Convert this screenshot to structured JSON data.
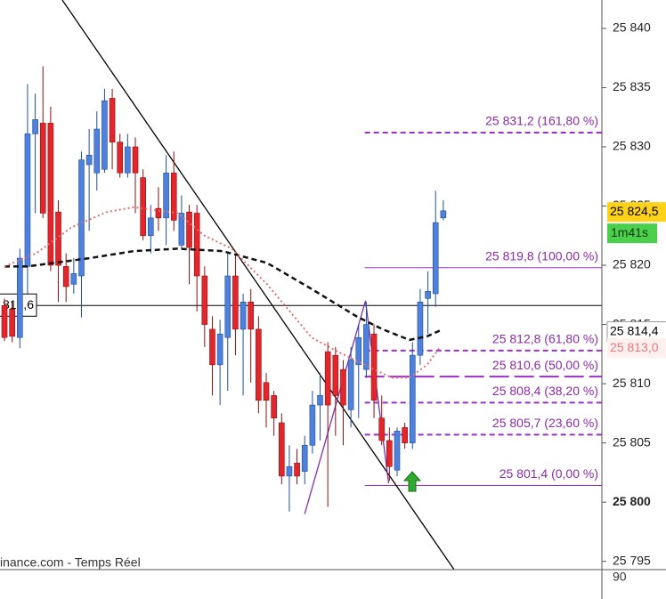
{
  "chart_data": {
    "type": "candlestick",
    "source": "inance.com - Temps Réel",
    "lower_axis_label": "90",
    "xlim": [
      -0.58,
      77.6
    ],
    "ylim": [
      25794.3,
      25842.4
    ],
    "yticks": [
      {
        "value": 25795,
        "label": "25 795"
      },
      {
        "value": 25800,
        "label": "25 800",
        "bold": true
      },
      {
        "value": 25805,
        "label": "25 805"
      },
      {
        "value": 25810,
        "label": "25 810"
      },
      {
        "value": 25815,
        "label": "25 815"
      },
      {
        "value": 25820,
        "label": "25 820"
      },
      {
        "value": 25825,
        "label": "25 825"
      },
      {
        "value": 25830,
        "label": "25 830"
      },
      {
        "value": 25835,
        "label": "25 835"
      },
      {
        "value": 25840,
        "label": "25 840"
      }
    ],
    "up_color": "#4f80db",
    "down_color": "#e3262b",
    "candles": {
      "open": [
        25816.6,
        25816.3,
        25813.9,
        25819.9,
        25831.1,
        25832.0,
        25832.0,
        25824.5,
        25819.9,
        25818.4,
        25819.1,
        25828.5,
        25827.8,
        25828.1,
        25834.1,
        25830.4,
        25827.8,
        25830.0,
        25827.4,
        25822.5,
        25824.8,
        25824.0,
        25827.8,
        25821.7,
        25824.5,
        25824.4,
        25819.1,
        25814.6,
        25811.6,
        25813.9,
        25819.1,
        25814.6,
        25816.9,
        25814.6,
        25810.1,
        25809.0,
        25806.7,
        25802.2,
        25803.3,
        25802.6,
        25804.8,
        25808.2,
        25812.7,
        25812.4,
        25811.2,
        25807.8,
        25811.6,
        25811.2,
        25814.2,
        25807.1,
        25805.2,
        25802.7,
        25806.3,
        25805.0,
        25812.4,
        25817.2,
        25817.6,
        25824.0
      ],
      "high": [
        25817.2,
        25816.9,
        25821.4,
        25835.3,
        25834.5,
        25836.8,
        25833.4,
        25825.5,
        25821.0,
        25820.6,
        25829.6,
        25831.5,
        25833.0,
        25834.9,
        25834.9,
        25831.1,
        25831.1,
        25830.8,
        25828.1,
        25825.1,
        25826.6,
        25829.3,
        25829.6,
        25825.9,
        25825.1,
        25825.1,
        25819.9,
        25815.7,
        25815.4,
        25821.0,
        25821.0,
        25817.6,
        25818.0,
        25815.7,
        25810.9,
        25809.4,
        25807.5,
        25804.8,
        25804.5,
        25805.6,
        25809.4,
        25810.9,
        25813.5,
        25813.1,
        25812.0,
        25813.1,
        25815.0,
        25816.9,
        25815.0,
        25809.0,
        25806.3,
        25806.3,
        25806.7,
        25813.5,
        25818.0,
        25819.5,
        25826.3,
        25825.5
      ],
      "low": [
        25813.6,
        25813.5,
        25813.0,
        25817.6,
        25824.4,
        25824.0,
        25819.5,
        25816.9,
        25816.9,
        25817.6,
        25815.6,
        25822.9,
        25826.3,
        25827.8,
        25828.1,
        25827.4,
        25827.4,
        25824.4,
        25822.1,
        25821.0,
        25822.9,
        25821.7,
        25822.9,
        25821.4,
        25818.4,
        25816.1,
        25813.1,
        25809.0,
        25808.2,
        25809.4,
        25812.4,
        25809.0,
        25810.1,
        25807.5,
        25806.3,
        25805.6,
        25801.5,
        25799.2,
        25801.5,
        25801.5,
        25804.1,
        25805.2,
        25799.6,
        25805.6,
        25804.8,
        25806.3,
        25807.1,
        25810.5,
        25807.1,
        25804.8,
        25801.8,
        25802.2,
        25804.5,
        25804.5,
        25811.6,
        25814.2,
        25816.5,
        25823.8
      ],
      "close": [
        25813.9,
        25814.0,
        25820.6,
        25831.1,
        25832.3,
        25824.4,
        25820.0,
        25820.0,
        25818.2,
        25819.3,
        25828.9,
        25829.3,
        25831.5,
        25833.9,
        25830.4,
        25827.8,
        25830.0,
        25827.8,
        25822.5,
        25824.0,
        25824.0,
        25827.8,
        25823.8,
        25824.4,
        25821.5,
        25819.1,
        25815.0,
        25811.6,
        25814.2,
        25819.1,
        25814.6,
        25816.9,
        25814.6,
        25808.6,
        25808.6,
        25807.1,
        25802.2,
        25803.0,
        25802.2,
        25804.8,
        25808.2,
        25809.0,
        25808.2,
        25809.0,
        25808.2,
        25812.0,
        25813.9,
        25815.0,
        25808.6,
        25805.2,
        25803.0,
        25806.0,
        25805.0,
        25812.4,
        25816.9,
        25817.8,
        25823.6,
        25824.6
      ]
    },
    "moving_averages": [
      {
        "color": "#111111",
        "dash": "6 4",
        "width": 2.5,
        "x": [
          0,
          2.9,
          6.4,
          11.0,
          16.8,
          22.5,
          28.3,
          34.1,
          39.9,
          45.7,
          49.1,
          52.6,
          54.9,
          56.6
        ],
        "values": [
          25819.9,
          25819.9,
          25820.2,
          25820.6,
          25821.2,
          25821.4,
          25821.2,
          25820.2,
          25818.0,
          25815.7,
          25814.6,
          25813.7,
          25814.0,
          25814.5
        ]
      },
      {
        "color": "#e07070",
        "dash": "2 3",
        "width": 2,
        "x": [
          0,
          4.1,
          8.7,
          13.3,
          16.8,
          22.5,
          26.0,
          29.5,
          34.1,
          39.9,
          43.3,
          46.8,
          50.3,
          52.6,
          54.9,
          56.6
        ],
        "values": [
          25819.9,
          25821.0,
          25823.2,
          25824.5,
          25824.9,
          25824.4,
          25822.5,
          25821.4,
          25818.4,
          25813.9,
          25812.7,
          25811.6,
          25810.5,
          25810.5,
          25811.6,
          25813.1
        ]
      }
    ],
    "trendlines": [
      {
        "color": "#000000",
        "x": [
          7.5,
          58.4
        ],
        "values": [
          25842.4,
          25794.3
        ]
      },
      {
        "color": "#7b2fb0",
        "x": [
          39.0,
          46.9,
          49.9
        ],
        "values": [
          25799.0,
          25817.0,
          25801.6
        ]
      }
    ],
    "fib_start": 46.8,
    "fib_color": "#9b30c8",
    "levels": [
      {
        "value": 25831.2,
        "label": "25 831,2 (161,80 %)",
        "dash": "6 4"
      },
      {
        "value": 25819.8,
        "label": "25 819,8 (100,00 %)",
        "dash": "none"
      },
      {
        "value": 25812.8,
        "label": "25 812,8 (61,80 %)",
        "dash": "6 4"
      },
      {
        "value": 25810.6,
        "label": "25 810,6 (50,00 %)",
        "dash": "22 6"
      },
      {
        "value": 25808.4,
        "label": "25 808,4 (38,20 %)",
        "dash": "6 4"
      },
      {
        "value": 25805.7,
        "label": "25 805,7 (23,60 %)",
        "dash": "6 4"
      },
      {
        "value": 25801.4,
        "label": "25 801,4 (0,00 %)",
        "dash": "none"
      }
    ],
    "reference_line": {
      "value": 25816.6,
      "label": "816,6"
    },
    "price_tags": [
      {
        "value": 25824.5,
        "label": "25 824,5",
        "bg": "#ffd21a",
        "fg": "#000000"
      },
      {
        "value": 25814.4,
        "label": "25 814,4",
        "bg": "#ffffff",
        "fg": "#000000"
      },
      {
        "value": 25813.0,
        "label": "25 813,0",
        "bg": "#fff0f0",
        "fg": "#e87878"
      }
    ],
    "countdown": "1m41s"
  }
}
